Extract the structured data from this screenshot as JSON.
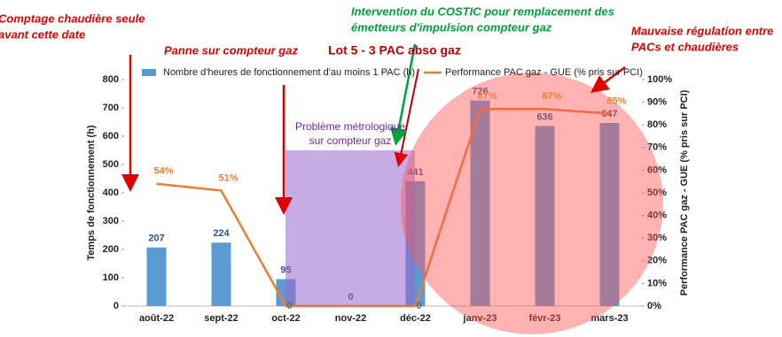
{
  "chart_data": {
    "type": "bar_line",
    "categories": [
      "août-22",
      "sept-22",
      "oct-22",
      "nov-22",
      "déc-22",
      "janv-23",
      "févr-23",
      "mars-23"
    ],
    "series": [
      {
        "name": "Nombre d'heures de fonctionnement d'au moins 1 PAC (h)",
        "type": "bar",
        "color": "#5b9bd5",
        "values": [
          207,
          224,
          95,
          0,
          441,
          726,
          636,
          647
        ]
      },
      {
        "name": "Performance PAC gaz - GUE (% pris sur PCI)",
        "type": "line",
        "axis": "y2",
        "color": "#ed7d31",
        "values": [
          54,
          51,
          0,
          0,
          0,
          87,
          87,
          85
        ],
        "value_labels": [
          "54%",
          "51%",
          "0",
          null,
          "0",
          "87%",
          "87%",
          "85%"
        ]
      }
    ],
    "ylabel": "Temps de fonctionnement (h)",
    "y2label": "Performance PAC gaz - GUE (% pris sur PCI)",
    "ylim": [
      0,
      800
    ],
    "yticks": [
      0,
      100,
      200,
      300,
      400,
      500,
      600,
      700,
      800
    ],
    "y2lim": [
      0,
      100
    ],
    "y2ticks": [
      {
        "value": 0,
        "label": "0%"
      },
      {
        "value": 10,
        "label": "10%"
      },
      {
        "value": 20,
        "label": "20%"
      },
      {
        "value": 30,
        "label": "30%"
      },
      {
        "value": 40,
        "label": "40%"
      },
      {
        "value": 50,
        "label": "50%"
      },
      {
        "value": 60,
        "label": "60%"
      },
      {
        "value": 70,
        "label": "70%"
      },
      {
        "value": 80,
        "label": "80%"
      },
      {
        "value": 90,
        "label": "90%"
      },
      {
        "value": 100,
        "label": "100%"
      }
    ],
    "annotations": [
      {
        "lines": [
          "Comptage chaudière seule",
          "avant cette date"
        ]
      },
      {
        "lines": [
          "Panne sur compteur gaz"
        ]
      },
      {
        "lines": [
          "Lot 5 - 3 PAC abso gaz"
        ]
      },
      {
        "lines": [
          "Intervention du COSTIC pour remplacement des",
          "émetteurs d'impulsion compteur gaz"
        ]
      },
      {
        "lines": [
          "Mauvaise régulation entre",
          "PACs et chaudières"
        ]
      },
      {
        "lines": [
          "Problème métrologique",
          "sur compteur gaz"
        ]
      }
    ]
  }
}
